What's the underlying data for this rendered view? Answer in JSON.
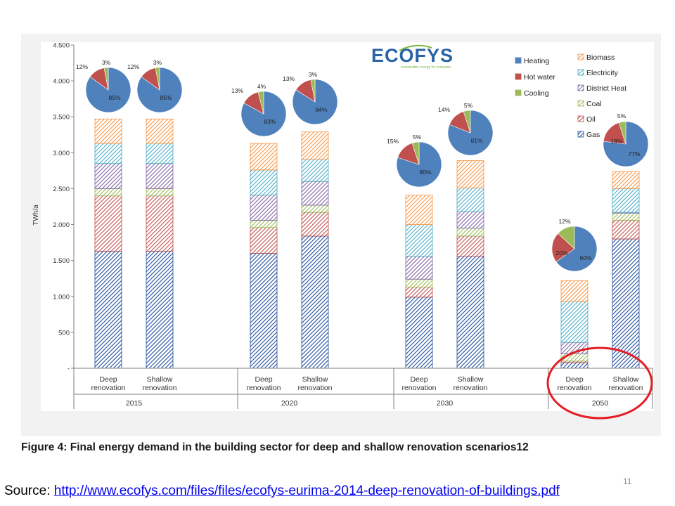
{
  "slide": {
    "source_label": "Source:",
    "source_url": "http://www.ecofys.com/files/files/ecofys-eurima-2014-deep-renovation-of-buildings.pdf",
    "page_number": "11",
    "caption": "Figure 4: Final energy demand in the building sector for deep and shallow renovation scenarios12",
    "logo_text": "ECOFYS",
    "logo_tagline": "sustainable energy for everyone"
  },
  "colors": {
    "Gas": "#1f4e9a",
    "Oil": "#c0504d",
    "Coal": "#9bbb59",
    "District Heat": "#8064a2",
    "Electricity": "#4bacc6",
    "Biomass": "#f79646",
    "Heating": "#4f81bd",
    "Hot water": "#c0504d",
    "Cooling": "#9bbb59",
    "highlight": "#e31e24"
  },
  "chart_data": {
    "type": "bar",
    "stacked": true,
    "ylabel": "TWh/a",
    "ylim": [
      0,
      4500
    ],
    "yticks": [
      "-",
      "500",
      "1.000",
      "1.500",
      "2.000",
      "2.500",
      "3.000",
      "3.500",
      "4.000",
      "4.500"
    ],
    "grid": false,
    "legend_position": "top-right",
    "years": [
      "2015",
      "2020",
      "2030",
      "2050"
    ],
    "categories": [
      {
        "year": "2015",
        "label": "Deep renovation"
      },
      {
        "year": "2015",
        "label": "Shallow renovation"
      },
      {
        "year": "2020",
        "label": "Deep renovation"
      },
      {
        "year": "2020",
        "label": "Shallow renovation"
      },
      {
        "year": "2030",
        "label": "Deep renovation"
      },
      {
        "year": "2030",
        "label": "Shallow renovation"
      },
      {
        "year": "2050",
        "label": "Deep renovation"
      },
      {
        "year": "2050",
        "label": "Shallow renovation"
      }
    ],
    "series": [
      {
        "name": "Gas",
        "values": [
          1630,
          1630,
          1600,
          1840,
          990,
          1560,
          80,
          1800
        ]
      },
      {
        "name": "Oil",
        "values": [
          770,
          770,
          360,
          330,
          140,
          280,
          20,
          260
        ]
      },
      {
        "name": "Coal",
        "values": [
          100,
          100,
          100,
          100,
          110,
          110,
          100,
          100
        ]
      },
      {
        "name": "District Heat",
        "values": [
          350,
          350,
          350,
          330,
          320,
          230,
          160,
          10
        ]
      },
      {
        "name": "Electricity",
        "values": [
          280,
          280,
          350,
          310,
          440,
          330,
          570,
          330
        ]
      },
      {
        "name": "Biomass",
        "values": [
          340,
          340,
          370,
          380,
          410,
          380,
          290,
          240
        ]
      }
    ],
    "pies": [
      {
        "slices": [
          85,
          12,
          3
        ],
        "labels": [
          "85%",
          "12%",
          "3%"
        ]
      },
      {
        "slices": [
          85,
          12,
          3
        ],
        "labels": [
          "85%",
          "12%",
          "3%"
        ]
      },
      {
        "slices": [
          83,
          13,
          4
        ],
        "labels": [
          "83%",
          "13%",
          "4%"
        ]
      },
      {
        "slices": [
          84,
          13,
          3
        ],
        "labels": [
          "84%",
          "13%",
          "3%"
        ]
      },
      {
        "slices": [
          80,
          15,
          5
        ],
        "labels": [
          "80%",
          "15%",
          "5%"
        ]
      },
      {
        "slices": [
          81,
          14,
          5
        ],
        "labels": [
          "81%",
          "14%",
          "5%"
        ]
      },
      {
        "slices": [
          60,
          20,
          12
        ],
        "labels": [
          "60%",
          "20%",
          "12%"
        ]
      },
      {
        "slices": [
          77,
          18,
          5
        ],
        "labels": [
          "77%",
          "18%",
          "5%"
        ]
      }
    ],
    "pie_series": [
      "Heating",
      "Hot water",
      "Cooling"
    ],
    "legend": {
      "col1": [
        "Heating",
        "Hot water",
        "Cooling"
      ],
      "col2": [
        "Biomass",
        "Electricity",
        "District Heat",
        "Coal",
        "Oil",
        "Gas"
      ]
    },
    "highlighted_category_index": 6
  }
}
